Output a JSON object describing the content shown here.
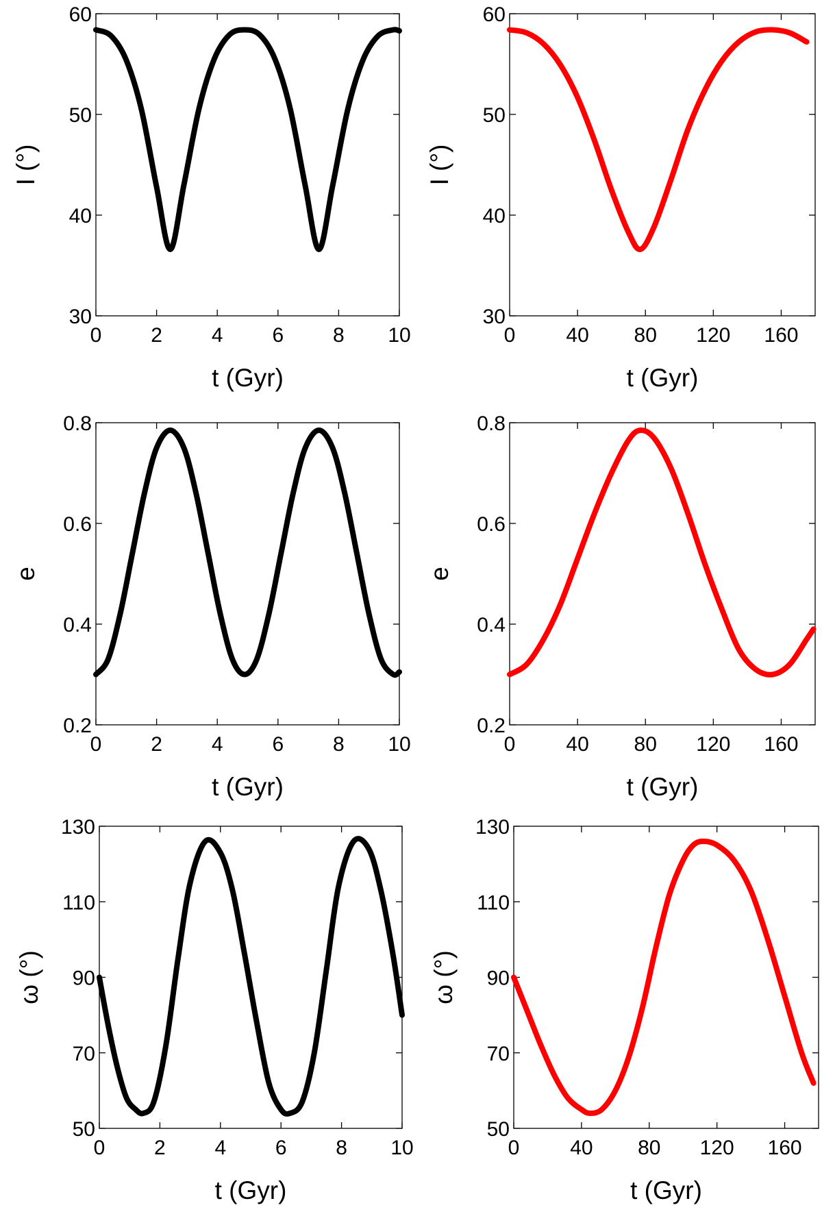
{
  "chart_data": [
    {
      "id": "I-short",
      "type": "line",
      "xlabel": "t (Gyr)",
      "ylabel": "I (°)",
      "xlim": [
        0,
        10
      ],
      "ylim": [
        30,
        60
      ],
      "xticks": [
        0,
        2,
        4,
        6,
        8,
        10
      ],
      "yticks": [
        30,
        40,
        50,
        60
      ],
      "xtick_labels": [
        "0",
        "2",
        "4",
        "6",
        "8",
        "10"
      ],
      "ytick_labels": [
        "30",
        "40",
        "50",
        "60"
      ],
      "grid": false,
      "series": [
        {
          "name": "I",
          "color": "#000000",
          "x": [
            0.0,
            0.5,
            1.0,
            1.5,
            2.0,
            2.45,
            2.9,
            3.4,
            3.9,
            4.4,
            4.9,
            5.4,
            5.9,
            6.4,
            6.9,
            7.35,
            7.8,
            8.3,
            8.8,
            9.3,
            9.8,
            10.0
          ],
          "y": [
            58.4,
            57.8,
            55.4,
            50.5,
            42.8,
            36.6,
            43.0,
            50.6,
            55.5,
            57.9,
            58.4,
            57.9,
            55.5,
            50.6,
            42.9,
            36.6,
            42.9,
            50.5,
            55.4,
            57.8,
            58.4,
            58.3
          ]
        }
      ]
    },
    {
      "id": "I-long",
      "type": "line",
      "xlabel": "t (Gyr)",
      "ylabel": "I (°)",
      "xlim": [
        0,
        180
      ],
      "ylim": [
        30,
        60
      ],
      "xticks": [
        0,
        40,
        80,
        120,
        160
      ],
      "yticks": [
        30,
        40,
        50,
        60
      ],
      "xtick_labels": [
        "0",
        "40",
        "80",
        "120",
        "160"
      ],
      "ytick_labels": [
        "30",
        "40",
        "50",
        "60"
      ],
      "grid": false,
      "series": [
        {
          "name": "I",
          "color": "#ff0000",
          "x": [
            0,
            10,
            20,
            30,
            40,
            50,
            60,
            70,
            77,
            85,
            95,
            105,
            115,
            125,
            135,
            145,
            155,
            165,
            175
          ],
          "y": [
            58.4,
            58.1,
            57.0,
            54.9,
            51.7,
            47.4,
            42.5,
            38.3,
            36.6,
            38.8,
            43.5,
            48.5,
            52.4,
            55.3,
            57.2,
            58.2,
            58.4,
            58.1,
            57.2
          ]
        }
      ]
    },
    {
      "id": "e-short",
      "type": "line",
      "xlabel": "t (Gyr)",
      "ylabel": "e",
      "xlim": [
        0,
        10
      ],
      "ylim": [
        0.2,
        0.8
      ],
      "xticks": [
        0,
        2,
        4,
        6,
        8,
        10
      ],
      "yticks": [
        0.2,
        0.4,
        0.6,
        0.8
      ],
      "xtick_labels": [
        "0",
        "2",
        "4",
        "6",
        "8",
        "10"
      ],
      "ytick_labels": [
        "0.2",
        "0.4",
        "0.6",
        "0.8"
      ],
      "grid": false,
      "series": [
        {
          "name": "e",
          "color": "#000000",
          "x": [
            0.0,
            0.4,
            0.8,
            1.2,
            1.6,
            2.0,
            2.45,
            2.9,
            3.3,
            3.7,
            4.1,
            4.5,
            4.9,
            5.3,
            5.7,
            6.1,
            6.5,
            6.9,
            7.35,
            7.8,
            8.2,
            8.6,
            9.0,
            9.4,
            9.8,
            10.0
          ],
          "y": [
            0.3,
            0.33,
            0.42,
            0.54,
            0.66,
            0.75,
            0.785,
            0.75,
            0.66,
            0.54,
            0.42,
            0.33,
            0.3,
            0.33,
            0.42,
            0.54,
            0.66,
            0.75,
            0.785,
            0.75,
            0.66,
            0.54,
            0.42,
            0.33,
            0.3,
            0.305
          ]
        }
      ]
    },
    {
      "id": "e-long",
      "type": "line",
      "xlabel": "t (Gyr)",
      "ylabel": "e",
      "xlim": [
        0,
        180
      ],
      "ylim": [
        0.2,
        0.8
      ],
      "xticks": [
        0,
        40,
        80,
        120,
        160
      ],
      "yticks": [
        0.2,
        0.4,
        0.6,
        0.8
      ],
      "xtick_labels": [
        "0",
        "40",
        "80",
        "120",
        "160"
      ],
      "ytick_labels": [
        "0.2",
        "0.4",
        "0.6",
        "0.8"
      ],
      "grid": false,
      "series": [
        {
          "name": "e",
          "color": "#ff0000",
          "x": [
            0,
            10,
            20,
            30,
            40,
            50,
            60,
            70,
            77,
            85,
            95,
            105,
            115,
            125,
            135,
            145,
            155,
            165,
            175,
            179
          ],
          "y": [
            0.3,
            0.32,
            0.37,
            0.44,
            0.53,
            0.62,
            0.7,
            0.765,
            0.785,
            0.77,
            0.71,
            0.62,
            0.52,
            0.43,
            0.35,
            0.31,
            0.3,
            0.32,
            0.37,
            0.39
          ]
        }
      ]
    },
    {
      "id": "omega-short",
      "type": "line",
      "xlabel": "t (Gyr)",
      "ylabel": "ω (°)",
      "xlim": [
        0,
        10
      ],
      "ylim": [
        50,
        130
      ],
      "xticks": [
        0,
        2,
        4,
        6,
        8,
        10
      ],
      "yticks": [
        50,
        70,
        90,
        110,
        130
      ],
      "xtick_labels": [
        "0",
        "2",
        "4",
        "6",
        "8",
        "10"
      ],
      "ytick_labels": [
        "50",
        "70",
        "90",
        "110",
        "130"
      ],
      "grid": false,
      "series": [
        {
          "name": "omega",
          "color": "#000000",
          "x": [
            0.0,
            0.3,
            0.6,
            0.9,
            1.2,
            1.45,
            1.8,
            2.2,
            2.6,
            3.0,
            3.5,
            4.0,
            4.4,
            4.8,
            5.2,
            5.6,
            6.0,
            6.3,
            6.7,
            7.1,
            7.5,
            7.9,
            8.4,
            8.9,
            9.3,
            9.7,
            10.0
          ],
          "y": [
            90,
            77,
            66,
            58,
            55,
            54,
            57,
            72,
            95,
            115,
            126,
            123,
            113,
            96,
            78,
            62,
            55,
            54,
            57,
            70,
            92,
            114,
            126,
            124,
            113,
            96,
            80
          ]
        }
      ]
    },
    {
      "id": "omega-long",
      "type": "line",
      "xlabel": "t (Gyr)",
      "ylabel": "ω (°)",
      "xlim": [
        0,
        180
      ],
      "ylim": [
        50,
        130
      ],
      "xticks": [
        0,
        40,
        80,
        120,
        160
      ],
      "yticks": [
        50,
        70,
        90,
        110,
        130
      ],
      "xtick_labels": [
        "0",
        "40",
        "80",
        "120",
        "160"
      ],
      "ytick_labels": [
        "50",
        "70",
        "90",
        "110",
        "130"
      ],
      "grid": false,
      "series": [
        {
          "name": "omega",
          "color": "#ff0000",
          "x": [
            0,
            8,
            16,
            24,
            32,
            40,
            45,
            52,
            60,
            68,
            76,
            84,
            92,
            100,
            106,
            112,
            120,
            130,
            140,
            150,
            160,
            170,
            177
          ],
          "y": [
            90,
            81,
            72,
            64,
            58,
            55,
            54,
            55,
            60,
            69,
            82,
            98,
            112,
            121,
            125,
            126,
            125,
            121,
            113,
            100,
            85,
            70,
            62
          ]
        }
      ]
    }
  ]
}
